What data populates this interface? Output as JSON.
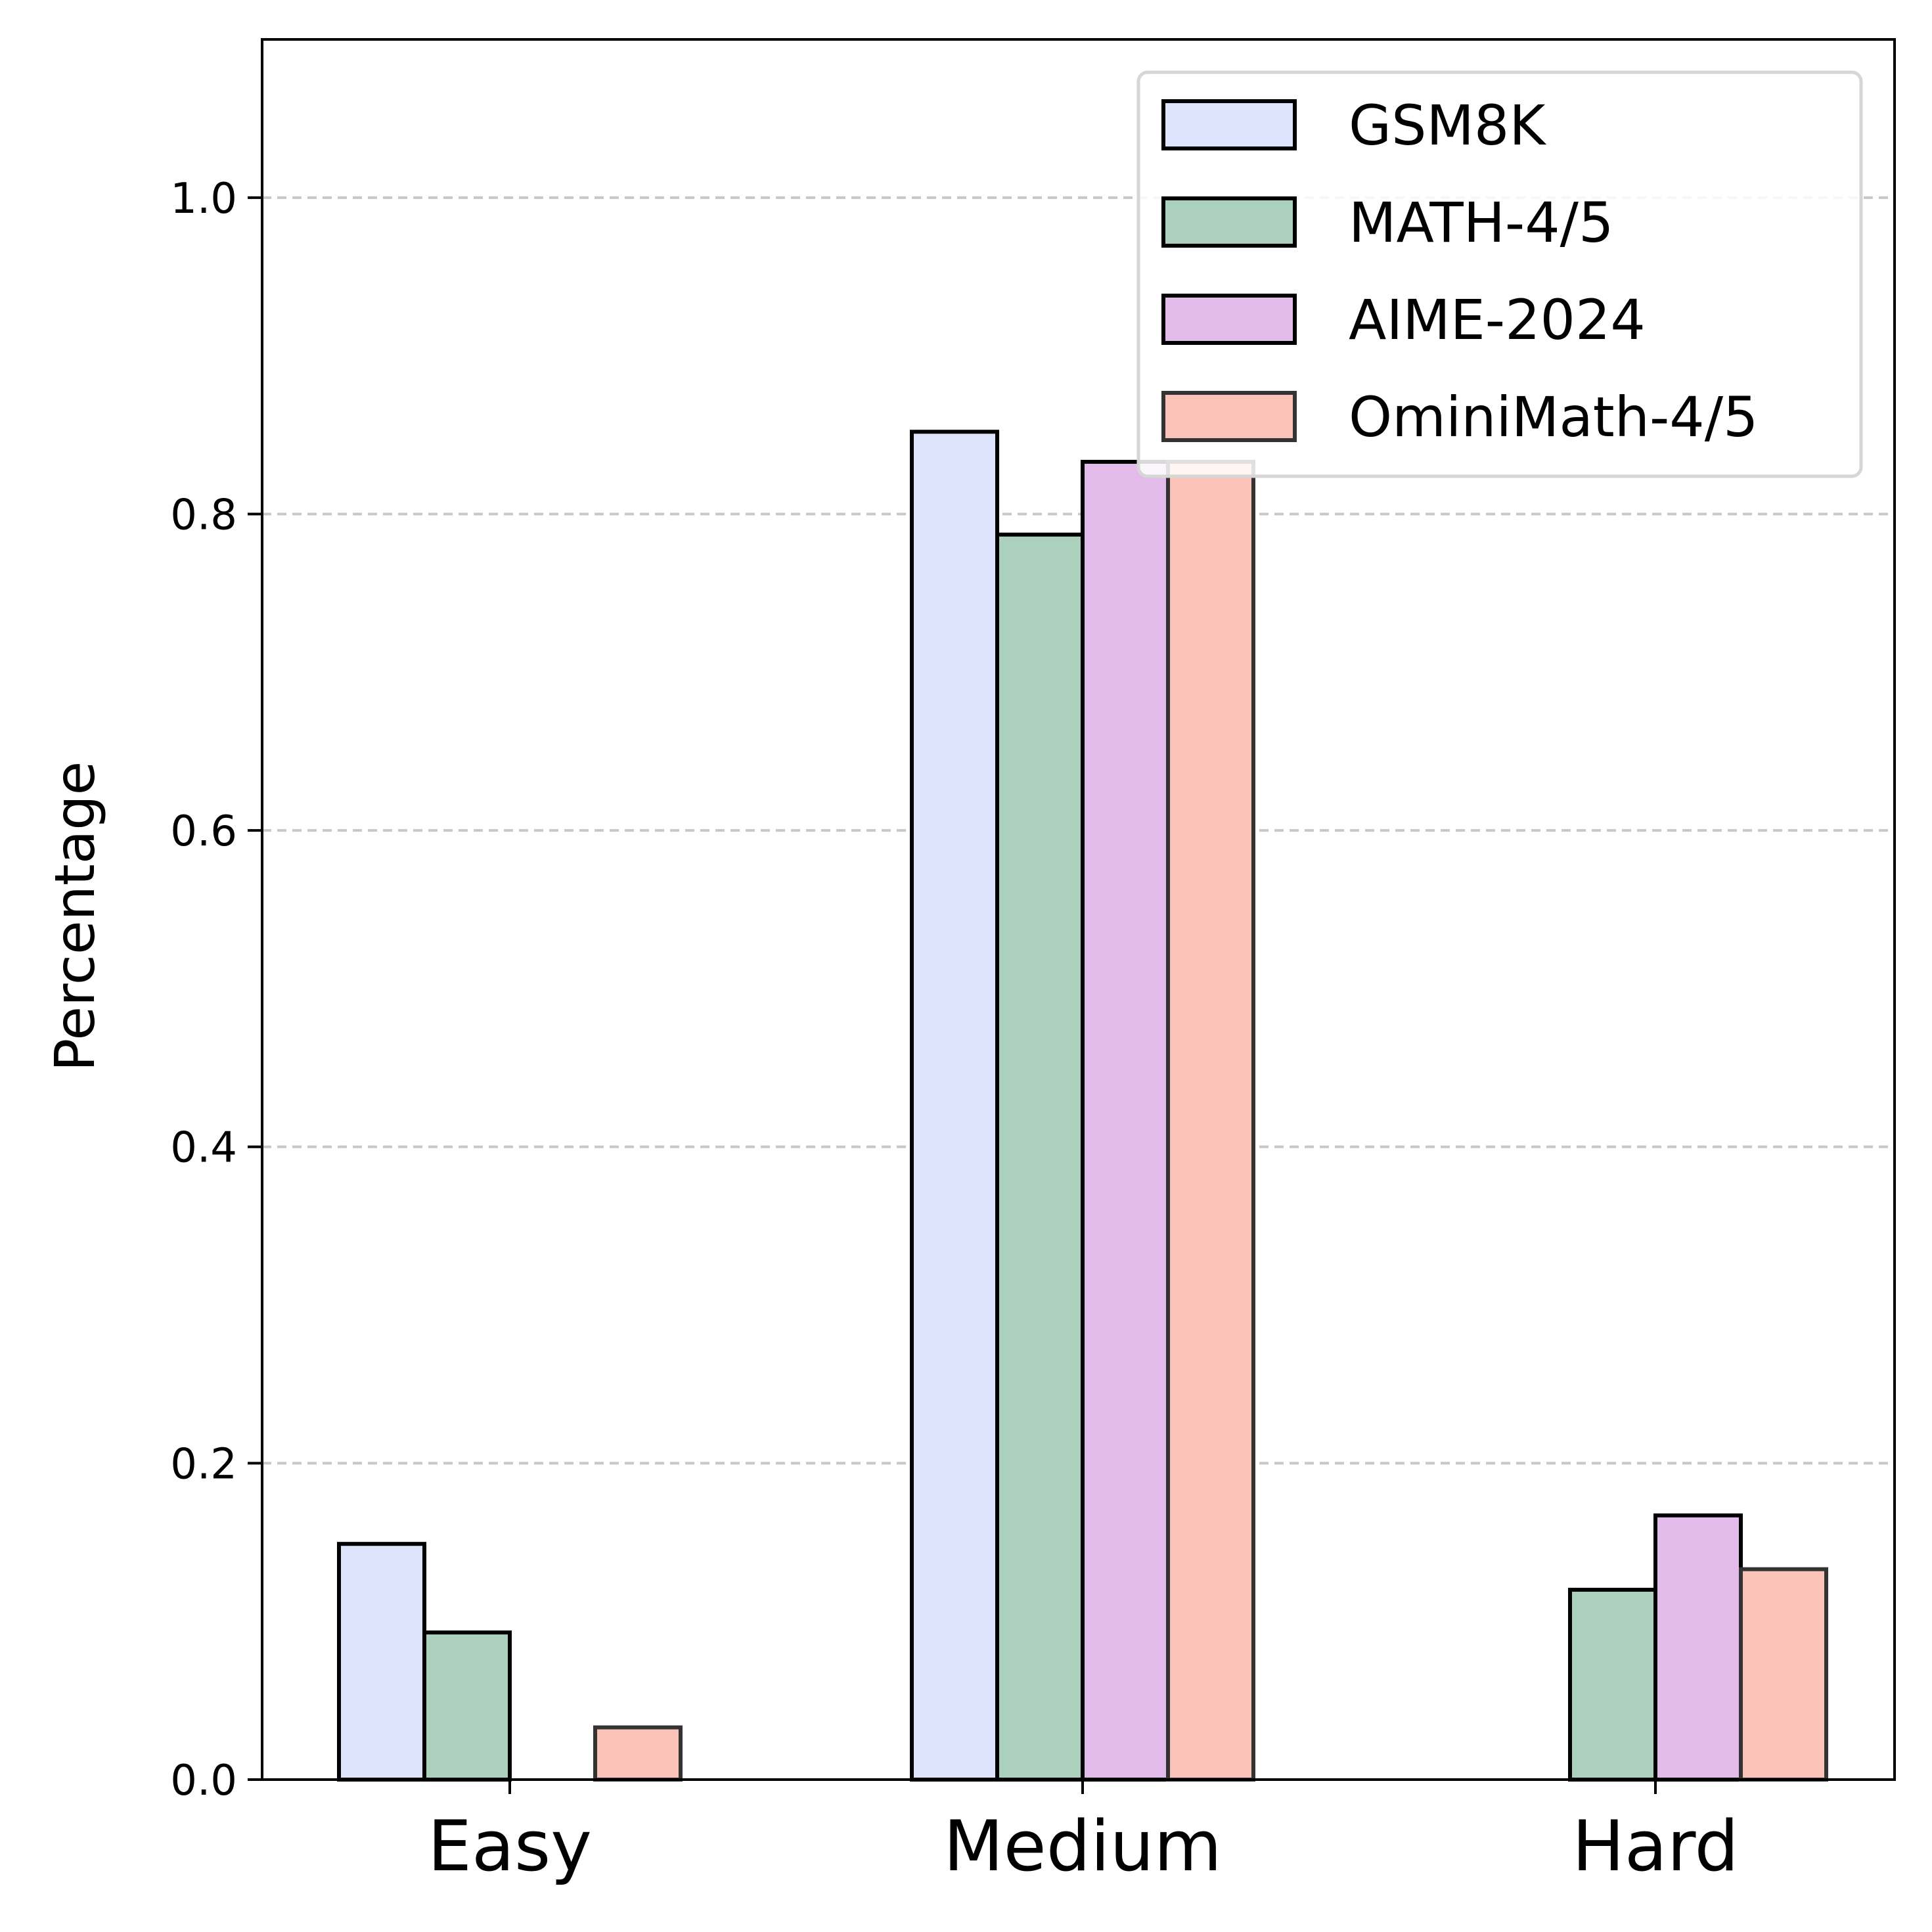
{
  "chart_data": {
    "type": "bar",
    "title": "",
    "xlabel": "",
    "ylabel": "Percentage",
    "categories": [
      "Easy",
      "Medium",
      "Hard"
    ],
    "ylim": [
      0,
      1.1
    ],
    "yticks": [
      0.0,
      0.2,
      0.4,
      0.6,
      0.8,
      1.0
    ],
    "ytick_labels": [
      "0.0",
      "0.2",
      "0.4",
      "0.6",
      "0.8",
      "1.0"
    ],
    "grid": "y-dashed",
    "legend_position": "top-right",
    "series": [
      {
        "name": "GSM8K",
        "color": "#dce3fa",
        "edge": "#000000",
        "values": [
          0.149,
          0.852,
          0.0
        ]
      },
      {
        "name": "MATH-4/5",
        "color": "#abd1bc",
        "edge": "#000000",
        "values": [
          0.093,
          0.787,
          0.12
        ]
      },
      {
        "name": "AIME-2024",
        "color": "#e3bbea",
        "edge": "#000000",
        "values": [
          0.0,
          0.833,
          0.167
        ]
      },
      {
        "name": "OminiMath-4/5",
        "color": "#fbc3b7",
        "edge": "#333333",
        "values": [
          0.033,
          0.833,
          0.133
        ]
      }
    ]
  }
}
